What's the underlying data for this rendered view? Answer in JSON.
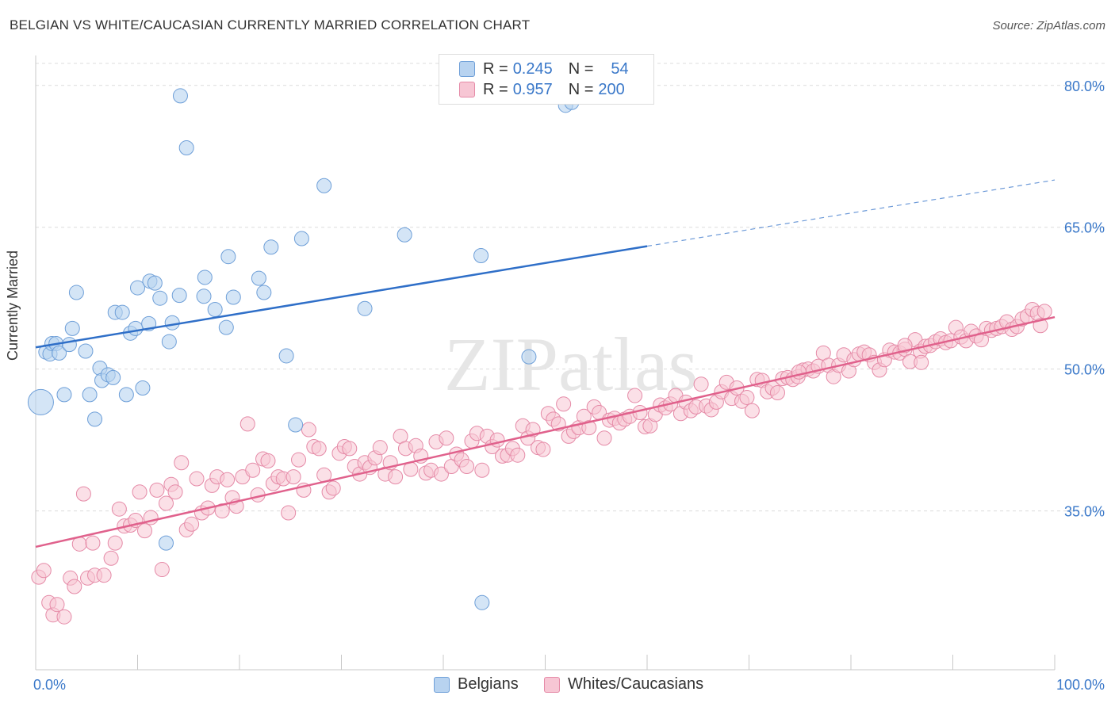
{
  "title": "BELGIAN VS WHITE/CAUCASIAN CURRENTLY MARRIED CORRELATION CHART",
  "source": "Source: ZipAtlas.com",
  "watermark": "ZIPatlas",
  "legend": {
    "r_label": "R =",
    "n_label": "N =",
    "rows": [
      {
        "r": "0.245",
        "n": "54"
      },
      {
        "r": "0.957",
        "n": "200"
      }
    ]
  },
  "colors": {
    "blue_fill": "#b8d3f0",
    "blue_stroke": "#6e9fd8",
    "blue_line": "#2f6fc8",
    "pink_fill": "#f7c6d4",
    "pink_stroke": "#e58aa7",
    "pink_line": "#e0618c",
    "value_text": "#3a78c9"
  },
  "chart_data": {
    "type": "scatter",
    "title": "BELGIAN VS WHITE/CAUCASIAN CURRENTLY MARRIED CORRELATION CHART",
    "xlabel": "",
    "ylabel": "Currently Married",
    "x_tick_labels": [
      "0.0%",
      "100.0%"
    ],
    "y_tick_labels": [
      "35.0%",
      "50.0%",
      "65.0%",
      "80.0%"
    ],
    "xlim": [
      0,
      100
    ],
    "ylim": [
      18.2,
      83.0
    ],
    "grid": true,
    "legend_position": "bottom",
    "series": [
      {
        "name": "Belgians",
        "trend": {
          "x0": 0,
          "y0": 52.3,
          "x1": 60,
          "y1": 63.0,
          "dashed_to_x": 100,
          "dashed_to_y": 70.0
        },
        "points": [
          [
            0.5,
            46.5
          ],
          [
            1.0,
            51.8
          ],
          [
            1.4,
            51.6
          ],
          [
            1.6,
            52.7
          ],
          [
            2.0,
            52.7
          ],
          [
            2.3,
            51.7
          ],
          [
            2.8,
            47.3
          ],
          [
            3.3,
            52.6
          ],
          [
            3.6,
            54.3
          ],
          [
            4.0,
            58.1
          ],
          [
            4.9,
            51.9
          ],
          [
            5.3,
            47.3
          ],
          [
            5.8,
            44.7
          ],
          [
            6.3,
            50.1
          ],
          [
            6.5,
            48.8
          ],
          [
            7.1,
            49.4
          ],
          [
            7.6,
            49.1
          ],
          [
            7.8,
            56.0
          ],
          [
            8.5,
            56.0
          ],
          [
            8.9,
            47.3
          ],
          [
            9.3,
            53.8
          ],
          [
            9.8,
            54.3
          ],
          [
            10.0,
            58.6
          ],
          [
            10.5,
            48.0
          ],
          [
            11.1,
            54.8
          ],
          [
            11.2,
            59.3
          ],
          [
            11.7,
            59.1
          ],
          [
            12.2,
            57.5
          ],
          [
            12.8,
            31.6
          ],
          [
            13.1,
            52.9
          ],
          [
            13.4,
            54.9
          ],
          [
            14.1,
            57.8
          ],
          [
            14.2,
            78.9
          ],
          [
            14.8,
            73.4
          ],
          [
            16.5,
            57.7
          ],
          [
            16.6,
            59.7
          ],
          [
            17.6,
            56.3
          ],
          [
            18.7,
            54.4
          ],
          [
            18.9,
            61.9
          ],
          [
            19.4,
            57.6
          ],
          [
            21.9,
            59.6
          ],
          [
            22.4,
            58.1
          ],
          [
            23.1,
            62.9
          ],
          [
            24.6,
            51.4
          ],
          [
            25.5,
            44.1
          ],
          [
            26.1,
            63.8
          ],
          [
            28.3,
            69.4
          ],
          [
            32.3,
            56.4
          ],
          [
            36.2,
            64.2
          ],
          [
            48.4,
            51.3
          ],
          [
            43.7,
            62.0
          ],
          [
            43.8,
            25.3
          ],
          [
            52.0,
            77.9
          ],
          [
            52.6,
            78.2
          ]
        ]
      },
      {
        "name": "Whites/Caucasians",
        "trend": {
          "x0": 0,
          "y0": 31.2,
          "x1": 100,
          "y1": 55.5
        },
        "points": [
          [
            0.3,
            28.0
          ],
          [
            0.8,
            28.7
          ],
          [
            1.3,
            25.3
          ],
          [
            1.7,
            24.0
          ],
          [
            2.1,
            25.1
          ],
          [
            2.8,
            23.8
          ],
          [
            3.4,
            27.9
          ],
          [
            3.8,
            27.0
          ],
          [
            4.3,
            31.5
          ],
          [
            4.7,
            36.8
          ],
          [
            5.1,
            27.9
          ],
          [
            5.6,
            31.6
          ],
          [
            5.8,
            28.2
          ],
          [
            6.7,
            28.2
          ],
          [
            7.4,
            30.0
          ],
          [
            7.8,
            31.6
          ],
          [
            8.2,
            35.2
          ],
          [
            8.7,
            33.4
          ],
          [
            9.3,
            33.5
          ],
          [
            9.8,
            34.0
          ],
          [
            10.2,
            37.0
          ],
          [
            10.7,
            32.9
          ],
          [
            11.3,
            34.3
          ],
          [
            11.9,
            37.2
          ],
          [
            12.4,
            28.8
          ],
          [
            12.8,
            35.8
          ],
          [
            13.3,
            37.8
          ],
          [
            13.7,
            37.0
          ],
          [
            14.3,
            40.1
          ],
          [
            14.8,
            33.0
          ],
          [
            15.3,
            33.6
          ],
          [
            15.8,
            38.4
          ],
          [
            16.3,
            34.8
          ],
          [
            16.9,
            35.3
          ],
          [
            17.3,
            37.7
          ],
          [
            17.8,
            38.6
          ],
          [
            18.3,
            35.0
          ],
          [
            18.8,
            38.3
          ],
          [
            19.3,
            36.4
          ],
          [
            19.7,
            35.5
          ],
          [
            20.3,
            38.6
          ],
          [
            20.8,
            44.2
          ],
          [
            21.3,
            39.3
          ],
          [
            21.8,
            36.7
          ],
          [
            22.3,
            40.5
          ],
          [
            22.8,
            40.3
          ],
          [
            23.3,
            37.9
          ],
          [
            23.8,
            38.6
          ],
          [
            24.3,
            38.4
          ],
          [
            24.8,
            34.8
          ],
          [
            25.3,
            38.6
          ],
          [
            25.8,
            40.4
          ],
          [
            26.3,
            37.2
          ],
          [
            26.8,
            43.6
          ],
          [
            27.3,
            41.8
          ],
          [
            27.8,
            41.6
          ],
          [
            28.3,
            38.8
          ],
          [
            28.8,
            37.0
          ],
          [
            29.2,
            37.4
          ],
          [
            29.8,
            41.1
          ],
          [
            30.3,
            41.8
          ],
          [
            30.8,
            41.6
          ],
          [
            31.3,
            39.7
          ],
          [
            31.8,
            38.9
          ],
          [
            32.3,
            40.1
          ],
          [
            32.8,
            39.6
          ],
          [
            33.3,
            40.6
          ],
          [
            33.8,
            41.7
          ],
          [
            34.3,
            38.9
          ],
          [
            34.8,
            40.1
          ],
          [
            35.3,
            38.6
          ],
          [
            35.8,
            42.9
          ],
          [
            36.3,
            41.6
          ],
          [
            36.8,
            39.4
          ],
          [
            37.3,
            41.9
          ],
          [
            37.8,
            40.8
          ],
          [
            38.3,
            39.0
          ],
          [
            38.8,
            39.3
          ],
          [
            39.3,
            42.3
          ],
          [
            39.8,
            38.9
          ],
          [
            40.3,
            42.7
          ],
          [
            40.8,
            39.7
          ],
          [
            41.3,
            41.0
          ],
          [
            41.8,
            40.4
          ],
          [
            42.3,
            39.7
          ],
          [
            42.8,
            42.4
          ],
          [
            43.3,
            43.2
          ],
          [
            43.8,
            39.3
          ],
          [
            44.3,
            42.9
          ],
          [
            44.8,
            41.8
          ],
          [
            45.3,
            42.5
          ],
          [
            45.8,
            40.8
          ],
          [
            46.3,
            40.9
          ],
          [
            46.8,
            41.6
          ],
          [
            47.3,
            40.9
          ],
          [
            47.8,
            44.0
          ],
          [
            48.3,
            42.7
          ],
          [
            48.8,
            43.6
          ],
          [
            49.3,
            41.7
          ],
          [
            49.8,
            41.5
          ],
          [
            50.3,
            45.3
          ],
          [
            50.8,
            44.7
          ],
          [
            51.3,
            44.2
          ],
          [
            51.8,
            46.3
          ],
          [
            52.3,
            42.9
          ],
          [
            52.8,
            43.4
          ],
          [
            53.3,
            43.8
          ],
          [
            53.8,
            45.0
          ],
          [
            54.3,
            43.8
          ],
          [
            54.8,
            46.0
          ],
          [
            55.3,
            45.4
          ],
          [
            55.8,
            42.7
          ],
          [
            56.3,
            44.6
          ],
          [
            56.8,
            44.8
          ],
          [
            57.3,
            44.3
          ],
          [
            57.8,
            44.7
          ],
          [
            58.3,
            45.0
          ],
          [
            58.8,
            47.2
          ],
          [
            59.3,
            45.4
          ],
          [
            59.8,
            43.9
          ],
          [
            60.3,
            44.0
          ],
          [
            60.8,
            45.2
          ],
          [
            61.3,
            46.2
          ],
          [
            61.8,
            45.9
          ],
          [
            62.3,
            46.3
          ],
          [
            62.8,
            47.2
          ],
          [
            63.3,
            45.3
          ],
          [
            63.8,
            46.5
          ],
          [
            64.3,
            45.6
          ],
          [
            64.8,
            46.0
          ],
          [
            65.3,
            48.4
          ],
          [
            65.8,
            46.1
          ],
          [
            66.3,
            45.7
          ],
          [
            66.8,
            46.5
          ],
          [
            67.3,
            47.6
          ],
          [
            67.8,
            48.6
          ],
          [
            68.3,
            46.9
          ],
          [
            68.8,
            48.0
          ],
          [
            69.3,
            46.6
          ],
          [
            69.8,
            47.0
          ],
          [
            70.3,
            45.6
          ],
          [
            70.8,
            48.9
          ],
          [
            71.3,
            48.8
          ],
          [
            71.8,
            47.6
          ],
          [
            72.3,
            48.0
          ],
          [
            72.8,
            47.5
          ],
          [
            73.3,
            49.0
          ],
          [
            73.8,
            49.1
          ],
          [
            74.3,
            48.9
          ],
          [
            74.8,
            49.2
          ],
          [
            75.3,
            49.9
          ],
          [
            75.8,
            50.0
          ],
          [
            76.3,
            49.8
          ],
          [
            76.8,
            50.3
          ],
          [
            77.3,
            51.7
          ],
          [
            77.8,
            50.4
          ],
          [
            78.3,
            49.2
          ],
          [
            78.8,
            50.4
          ],
          [
            79.3,
            51.5
          ],
          [
            79.8,
            49.8
          ],
          [
            80.3,
            51.0
          ],
          [
            80.8,
            51.6
          ],
          [
            81.3,
            51.8
          ],
          [
            81.8,
            51.5
          ],
          [
            82.3,
            50.7
          ],
          [
            82.8,
            49.9
          ],
          [
            83.3,
            51.0
          ],
          [
            83.8,
            52.0
          ],
          [
            84.3,
            51.8
          ],
          [
            84.8,
            51.7
          ],
          [
            85.3,
            52.1
          ],
          [
            85.8,
            50.8
          ],
          [
            86.3,
            53.1
          ],
          [
            86.8,
            51.9
          ],
          [
            87.3,
            52.4
          ],
          [
            87.8,
            52.5
          ],
          [
            88.3,
            52.9
          ],
          [
            88.8,
            53.2
          ],
          [
            89.3,
            52.8
          ],
          [
            89.8,
            53.0
          ],
          [
            90.3,
            54.4
          ],
          [
            90.8,
            53.4
          ],
          [
            91.3,
            53.0
          ],
          [
            91.8,
            54.0
          ],
          [
            92.3,
            53.5
          ],
          [
            92.8,
            53.1
          ],
          [
            93.3,
            54.3
          ],
          [
            93.8,
            54.1
          ],
          [
            94.3,
            54.3
          ],
          [
            94.8,
            54.5
          ],
          [
            95.3,
            55.0
          ],
          [
            95.8,
            54.2
          ],
          [
            96.3,
            54.5
          ],
          [
            96.8,
            55.3
          ],
          [
            97.3,
            55.6
          ],
          [
            97.8,
            56.3
          ],
          [
            98.3,
            55.9
          ],
          [
            99.0,
            56.1
          ],
          [
            98.6,
            54.6
          ],
          [
            86.9,
            50.7
          ],
          [
            85.3,
            52.5
          ],
          [
            74.9,
            49.7
          ]
        ]
      }
    ]
  }
}
